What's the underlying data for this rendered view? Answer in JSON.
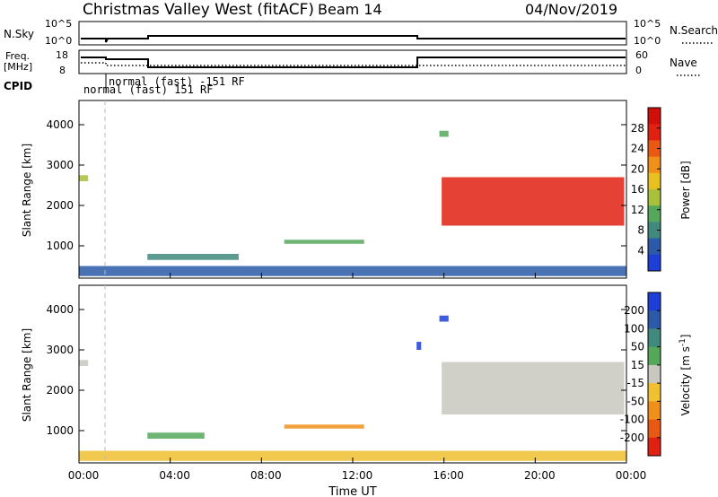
{
  "header": {
    "station": "Christmas Valley West (fitACF)",
    "beam": "Beam 14",
    "date": "04/Nov/2019"
  },
  "sky_panel": {
    "left_label": "N.Sky",
    "right_label": "N.Search",
    "tick_high": "10^5",
    "tick_low": "10^0",
    "right_tick_high": "10^5",
    "right_tick_low": "10^0"
  },
  "freq_panel": {
    "left_label_line1": "Freq.",
    "left_label_line2": "[MHz]",
    "right_label": "Nave",
    "left_ticks": [
      "18",
      "8"
    ],
    "right_ticks": [
      "60",
      "0"
    ],
    "cpid_label": "CPID",
    "cpid_text_1": "normal (fast) -151 RF",
    "cpid_text_2": "normal (fast) 151 RF"
  },
  "x_axis": {
    "label": "Time UT",
    "ticks": [
      "00:00",
      "04:00",
      "08:00",
      "12:00",
      "16:00",
      "20:00",
      "00:00"
    ]
  },
  "chart_data": [
    {
      "type": "heatmap",
      "name": "power",
      "ylabel": "Slant Range [km]",
      "yticks": [
        "1000",
        "2000",
        "3000",
        "4000"
      ],
      "colorbar_label": "Power [dB]",
      "colorbar_ticks": [
        "4",
        "8",
        "12",
        "16",
        "20",
        "24",
        "28"
      ],
      "colorbar_colors": [
        "#1d3fd6",
        "#2a5aa8",
        "#3f8a7c",
        "#55a85a",
        "#a8c03a",
        "#e8c020",
        "#f0901a",
        "#e85a14",
        "#e02010",
        "#d01008"
      ],
      "y_range_km": [
        200,
        4600
      ],
      "x_range_hours": [
        0,
        24
      ],
      "regions": [
        {
          "t0": 0.0,
          "t1": 24.0,
          "r0": 250,
          "r1": 500,
          "level": "low",
          "color": "#2a5aa8"
        },
        {
          "t0": 3.0,
          "t1": 7.0,
          "r0": 650,
          "r1": 800,
          "level": "low",
          "color": "#3f8a7c"
        },
        {
          "t0": 9.0,
          "t1": 12.5,
          "r0": 1050,
          "r1": 1150,
          "level": "mid",
          "color": "#55a85a"
        },
        {
          "t0": 15.9,
          "t1": 23.9,
          "r0": 1500,
          "r1": 2700,
          "level": "high",
          "color": "#e02010"
        },
        {
          "t0": 0.0,
          "t1": 0.4,
          "r0": 2600,
          "r1": 2750,
          "level": "mid",
          "color": "#a8c03a"
        },
        {
          "t0": 15.8,
          "t1": 16.2,
          "r0": 3700,
          "r1": 3850,
          "level": "mid",
          "color": "#55a85a"
        }
      ]
    },
    {
      "type": "heatmap",
      "name": "velocity",
      "ylabel": "Slant Range [km]",
      "yticks": [
        "1000",
        "2000",
        "3000",
        "4000"
      ],
      "colorbar_label": "Velocity [m s^-1]",
      "colorbar_ticks": [
        "200",
        "100",
        "50",
        "15",
        "-15",
        "-50",
        "-100",
        "-200"
      ],
      "colorbar_colors": [
        "#1d3fd6",
        "#2a5aa8",
        "#3f8a7c",
        "#55a85a",
        "#c8c8c0",
        "#f0c030",
        "#f0901a",
        "#e85a14",
        "#e02010"
      ],
      "y_range_km": [
        200,
        4600
      ],
      "x_range_hours": [
        0,
        24
      ],
      "regions": [
        {
          "t0": 0.0,
          "t1": 24.0,
          "r0": 250,
          "r1": 500,
          "level": "low",
          "color": "#f0c030"
        },
        {
          "t0": 3.0,
          "t1": 5.5,
          "r0": 800,
          "r1": 950,
          "level": "pos",
          "color": "#55a85a"
        },
        {
          "t0": 9.0,
          "t1": 12.5,
          "r0": 1050,
          "r1": 1150,
          "level": "neg",
          "color": "#f0901a"
        },
        {
          "t0": 15.9,
          "t1": 23.9,
          "r0": 1400,
          "r1": 2700,
          "level": "zero",
          "color": "#c8c8c0"
        },
        {
          "t0": 14.8,
          "t1": 15.0,
          "r0": 3000,
          "r1": 3200,
          "level": "pos",
          "color": "#1d3fd6"
        },
        {
          "t0": 15.8,
          "t1": 16.2,
          "r0": 3700,
          "r1": 3850,
          "level": "pos",
          "color": "#1d3fd6"
        },
        {
          "t0": 0.0,
          "t1": 0.4,
          "r0": 2600,
          "r1": 2750,
          "level": "zero",
          "color": "#c8c8c0"
        }
      ]
    }
  ]
}
